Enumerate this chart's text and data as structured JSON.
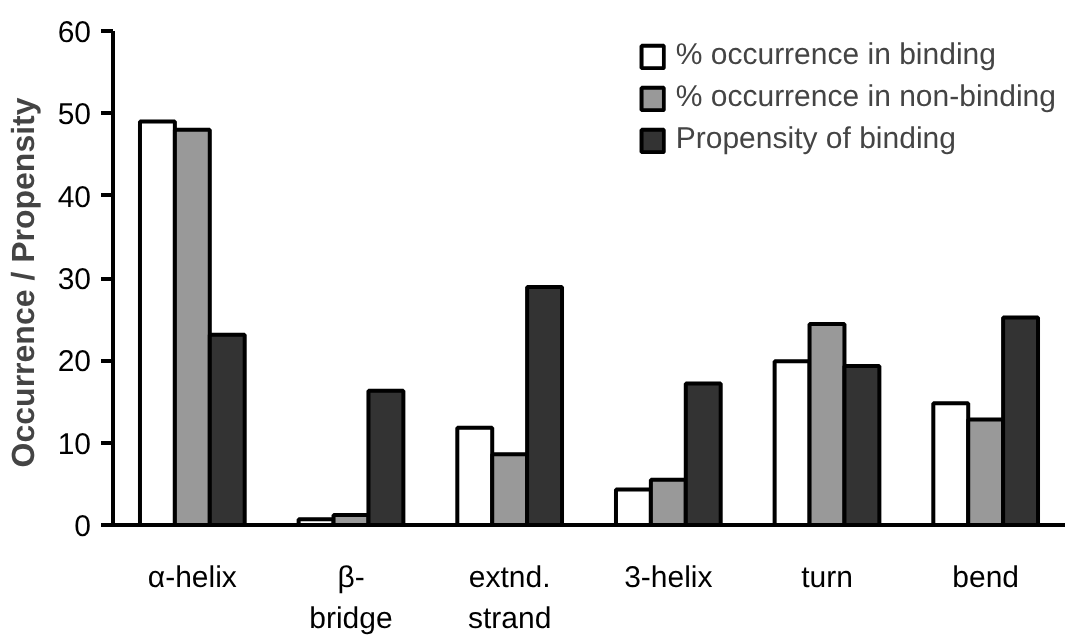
{
  "chart_data": {
    "type": "bar",
    "ylabel": "Occurrence /  Propensity",
    "categories": [
      "α-helix",
      "β-\nbridge",
      "extnd.\nstrand",
      "3-helix",
      "turn",
      "bend"
    ],
    "series": [
      {
        "name": "% occurrence in binding",
        "color": "#ffffff",
        "values": [
          49.0,
          0.7,
          11.8,
          4.3,
          19.9,
          14.8
        ]
      },
      {
        "name": "% occurrence in non-binding",
        "color": "#999999",
        "values": [
          48.0,
          1.2,
          8.6,
          5.5,
          24.4,
          12.8
        ]
      },
      {
        "name": "Propensity of binding",
        "color": "#333333",
        "values": [
          23.1,
          16.3,
          28.9,
          17.2,
          19.3,
          25.2
        ]
      }
    ],
    "ylim": [
      0,
      60
    ],
    "yticks": [
      0,
      10,
      20,
      30,
      40,
      50,
      60
    ],
    "grid": false,
    "legend": "top right"
  }
}
